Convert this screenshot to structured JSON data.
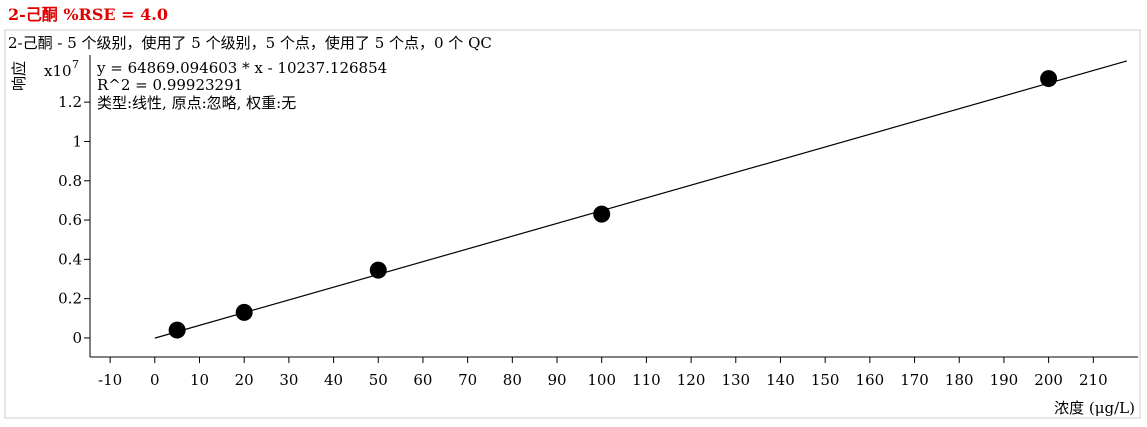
{
  "chart_data": {
    "type": "scatter",
    "title": "2-己酮    %RSE = 4.0",
    "subtitle": "2-己酮 - 5 个级别，使用了 5 个级别，5 个点，使用了 5 个点，0 个 QC",
    "y_label": "响应",
    "y_multiplier": "x10",
    "y_exponent": "7",
    "x_label": "浓度 (μg/L)",
    "annotations": [
      "y = 64869.094603 * x  - 10237.126854",
      "R^2 = 0.99923291",
      "类型:线性, 原点:忽略, 权重:无"
    ],
    "x": [
      5,
      20,
      50,
      100,
      200
    ],
    "values": [
      0.04,
      0.13,
      0.345,
      0.63,
      1.32
    ],
    "color": "#000000",
    "fit_line": {
      "x": [
        0,
        217.5
      ],
      "y": [
        -0.001,
        1.41
      ]
    },
    "xlim": [
      -14.5,
      220
    ],
    "ylim": [
      -0.097,
      1.44
    ],
    "xticks": [
      -10,
      0,
      10,
      20,
      30,
      40,
      50,
      60,
      70,
      80,
      90,
      100,
      110,
      120,
      130,
      140,
      150,
      160,
      170,
      180,
      190,
      200,
      210
    ],
    "yticks": [
      0,
      0.2,
      0.4,
      0.6,
      0.8,
      1,
      1.2
    ]
  }
}
